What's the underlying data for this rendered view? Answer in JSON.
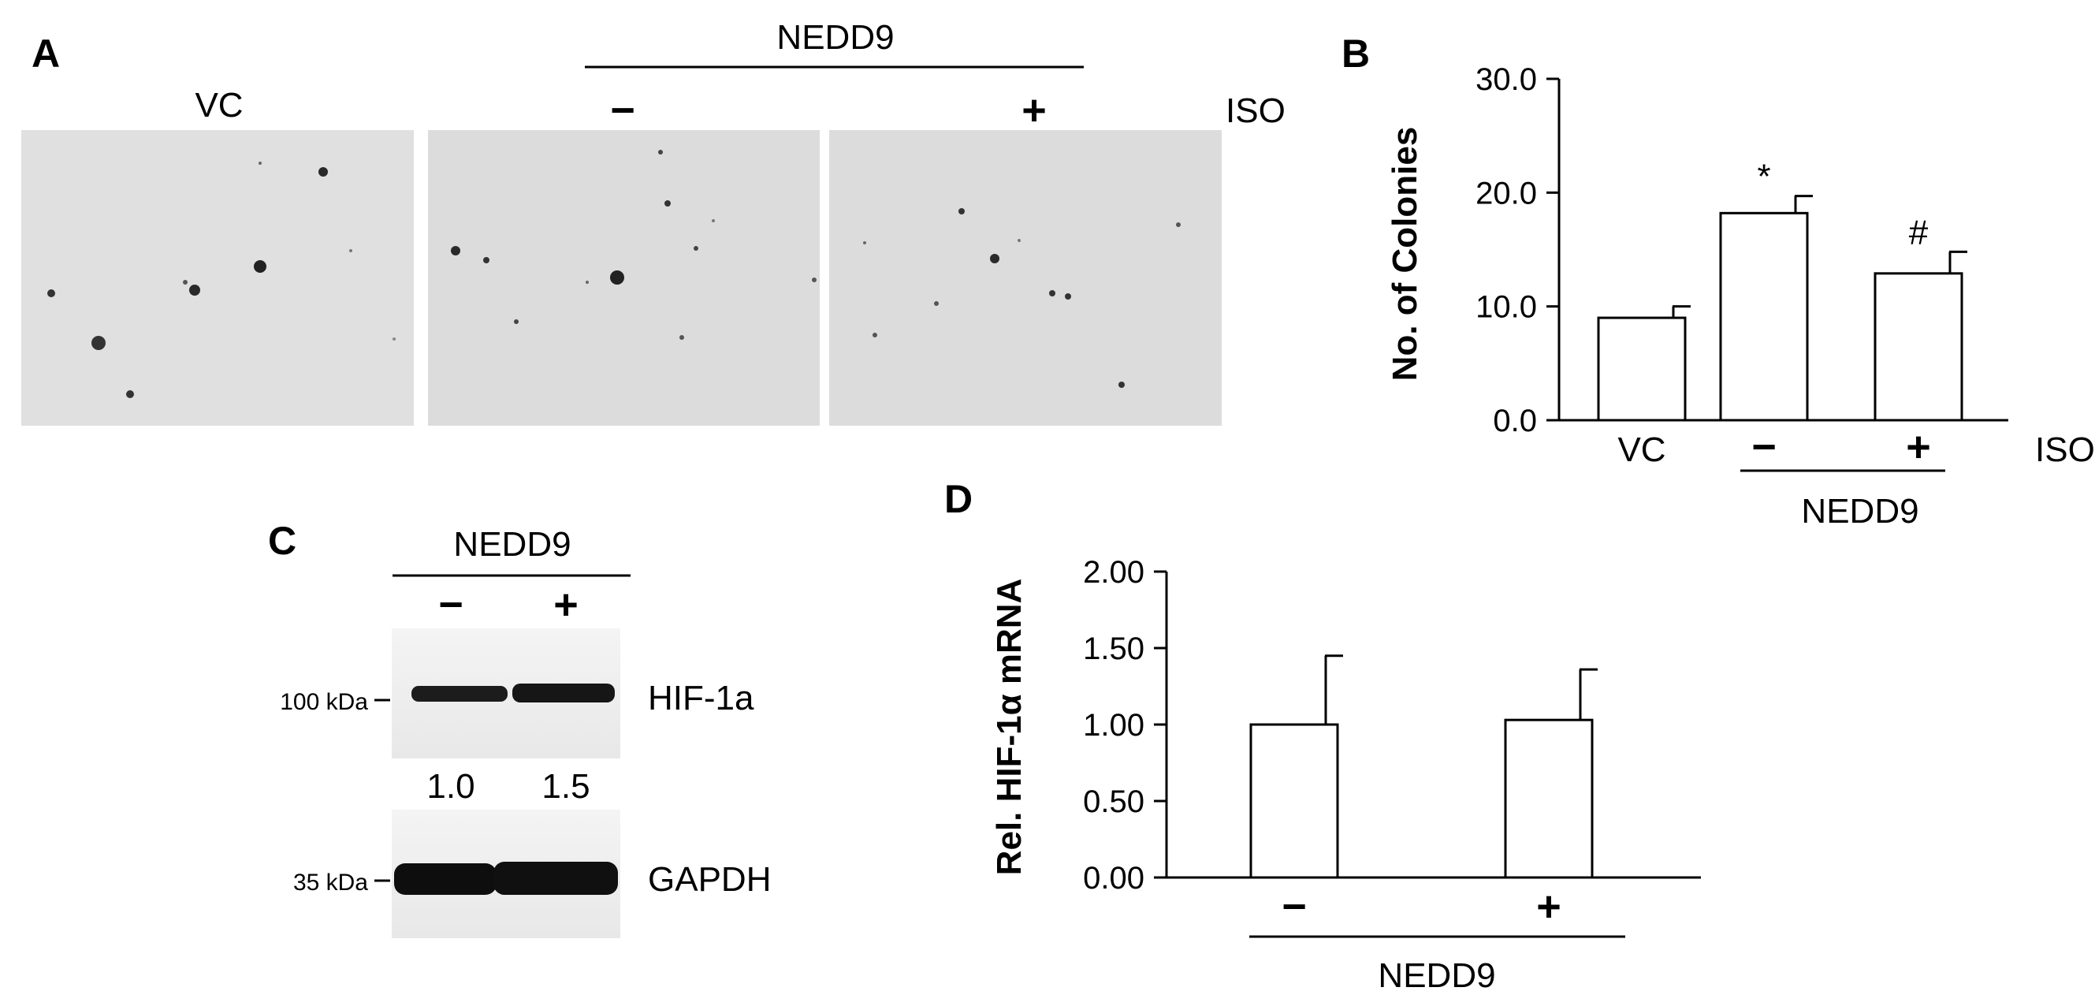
{
  "panels": {
    "A": {
      "label": "A",
      "group_label": "NEDD9",
      "col_vc": "VC",
      "minus": "−",
      "plus": "+",
      "iso": "ISO"
    },
    "C": {
      "label": "C",
      "group_label": "NEDD9",
      "minus": "−",
      "plus": "+",
      "marker_100": "100 kDa",
      "marker_35": "35 kDa",
      "band_hif": "HIF-1a",
      "band_gapdh": "GAPDH",
      "quant_1": "1.0",
      "quant_2": "1.5"
    }
  },
  "chart_data": [
    {
      "panel": "B",
      "type": "bar",
      "label": "B",
      "categories": [
        "VC",
        "−",
        "+"
      ],
      "values": [
        9.0,
        18.2,
        12.9
      ],
      "errors": [
        1.0,
        1.5,
        1.9
      ],
      "annotations": [
        "",
        "*",
        "#"
      ],
      "ylabel": "No. of Colonies",
      "yticks": [
        "0.0",
        "10.0",
        "20.0",
        "30.0"
      ],
      "ylim": [
        0,
        30
      ],
      "extra_label": "ISO",
      "group_label": "NEDD9",
      "bar_color": "#ffffff"
    },
    {
      "panel": "D",
      "type": "bar",
      "label": "D",
      "categories": [
        "−",
        "+"
      ],
      "values": [
        1.0,
        1.03
      ],
      "errors": [
        0.45,
        0.33
      ],
      "annotations": [
        "",
        ""
      ],
      "ylabel": "Rel. HIF-1α mRNA",
      "yticks": [
        "0.00",
        "0.50",
        "1.00",
        "1.50",
        "2.00"
      ],
      "ylim": [
        0,
        2
      ],
      "group_label": "NEDD9",
      "bar_color": "#ffffff"
    }
  ]
}
